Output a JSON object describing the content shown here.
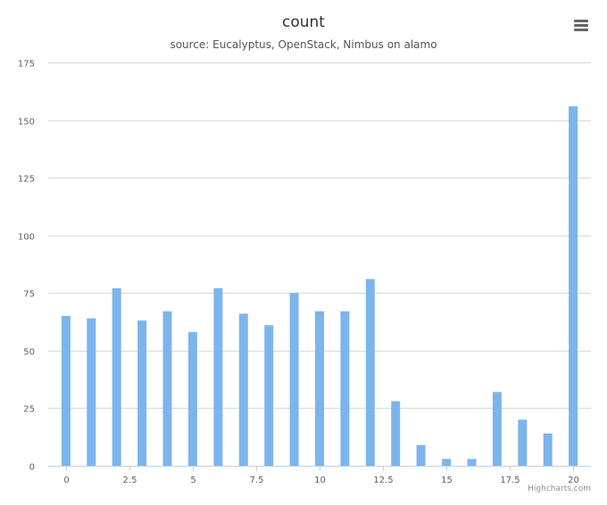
{
  "chart_data": {
    "type": "bar",
    "title": "count",
    "subtitle": "source: Eucalyptus, OpenStack, Nimbus on alamo",
    "x": [
      0,
      1,
      2,
      3,
      4,
      5,
      6,
      7,
      8,
      9,
      10,
      11,
      12,
      13,
      14,
      15,
      16,
      17,
      18,
      19,
      20
    ],
    "values": [
      65,
      64,
      77,
      63,
      67,
      58,
      77,
      66,
      61,
      75,
      67,
      67,
      81,
      28,
      9,
      3,
      3,
      32,
      20,
      14,
      156
    ],
    "xlim": [
      -0.7,
      20.7
    ],
    "ylim": [
      0,
      175
    ],
    "x_ticks": [
      "0",
      "2.5",
      "5",
      "7.5",
      "10",
      "12.5",
      "15",
      "17.5",
      "20"
    ],
    "y_ticks": [
      "0",
      "25",
      "50",
      "75",
      "100",
      "125",
      "150",
      "175"
    ],
    "xlabel": "",
    "ylabel": "",
    "grid": true,
    "bar_color": "#7cb5ec"
  },
  "menu_icon": "hamburger-menu-icon",
  "credit": "Highcharts.com"
}
